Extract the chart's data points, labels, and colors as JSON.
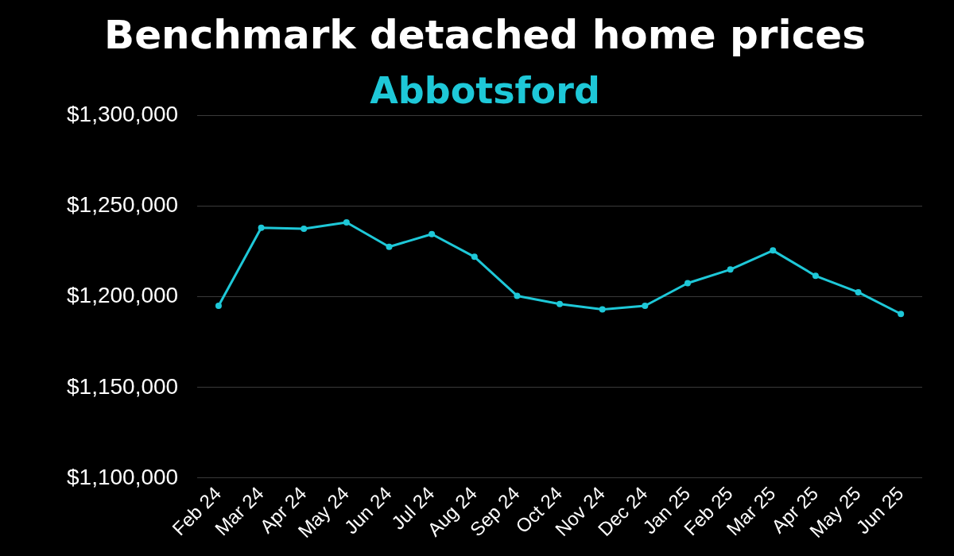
{
  "chart_data": {
    "type": "line",
    "title": "Benchmark detached home prices",
    "subtitle": "Abbotsford",
    "categories": [
      "Feb 24",
      "Mar 24",
      "Apr 24",
      "May 24",
      "Jun 24",
      "Jul 24",
      "Aug 24",
      "Sep 24",
      "Oct 24",
      "Nov 24",
      "Dec 24",
      "Jan 25",
      "Feb 25",
      "Mar 25",
      "Apr 25",
      "May 25",
      "Jun 25"
    ],
    "series": [
      {
        "color": "#1ec8d8",
        "values": [
          1195000,
          1238000,
          1237500,
          1241000,
          1227500,
          1234500,
          1222000,
          1200500,
          1196000,
          1193000,
          1195000,
          1207500,
          1215000,
          1225500,
          1211500,
          1202500,
          1190500
        ]
      }
    ],
    "ylim": [
      1100000,
      1300000
    ],
    "yticks": [
      {
        "value": 1100000,
        "label": "$1,100,000"
      },
      {
        "value": 1150000,
        "label": "$1,150,000"
      },
      {
        "value": 1200000,
        "label": "$1,200,000"
      },
      {
        "value": 1250000,
        "label": "$1,250,000"
      },
      {
        "value": 1300000,
        "label": "$1,300,000"
      }
    ],
    "grid": "y",
    "legend": false,
    "marker": "circle",
    "line_style": "solid"
  }
}
